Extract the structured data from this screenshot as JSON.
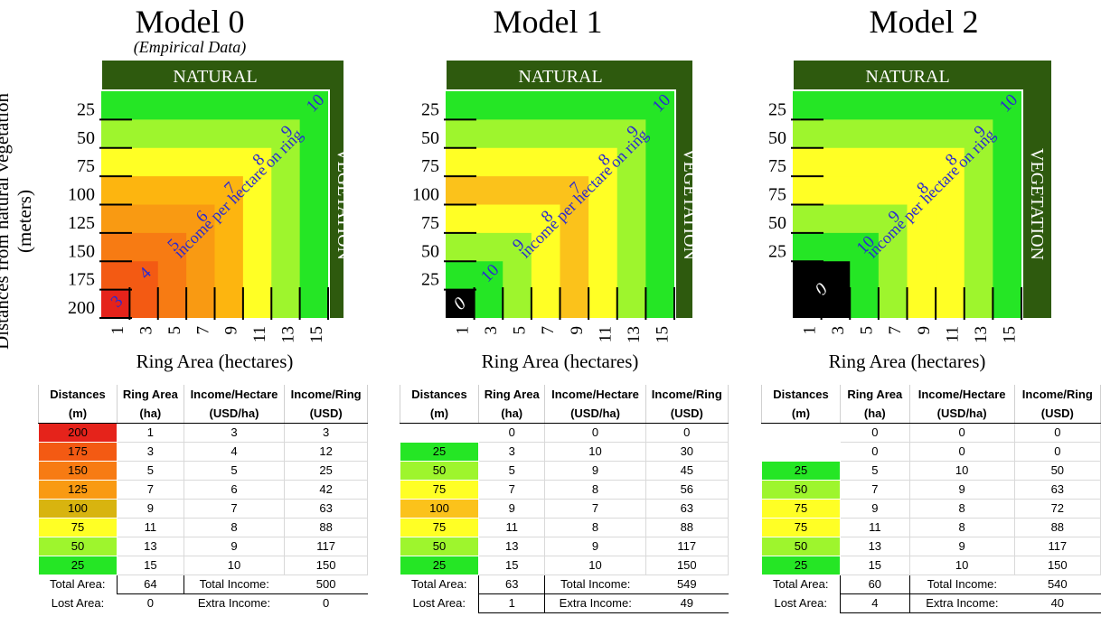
{
  "y_axis_label": "Distances from natural vegetation",
  "y_axis_units": "(meters)",
  "natural_label": "NATURAL",
  "vegetation_label": "VEGETATION",
  "x_axis_label": "Ring Area (hectares)",
  "x_ticks": [
    "1",
    "3",
    "5",
    "7",
    "9",
    "11",
    "13",
    "15"
  ],
  "diagonal_label": "income per hectare on ring",
  "colors": {
    "dark_green": "#2e5a0e",
    "ring_15": "#25e625",
    "ring_13": "#9ef52d",
    "ring_11": "#ffff25",
    "ring_9a": "#ffff00",
    "ring_9b": "#fbc21b",
    "ring_7": "#f99a12",
    "ring_5": "#f77b13",
    "ring_3": "#f35a13",
    "ring_1": "#e5231b",
    "lost": "#000000",
    "blue_text": "#2a2ad0"
  },
  "table_headers": [
    {
      "a": "Distances",
      "b": "(m)"
    },
    {
      "a": "Ring Area",
      "b": "(ha)"
    },
    {
      "a": "Income/Hectare",
      "b": "(USD/ha)"
    },
    {
      "a": "Income/Ring",
      "b": "(USD)"
    }
  ],
  "labels": {
    "total_area": "Total Area:",
    "lost_area": "Lost Area:",
    "total_income": "Total Income:",
    "extra_income": "Extra Income:"
  },
  "models": [
    {
      "title": "Model 0",
      "subtitle": "(Empirical Data)",
      "y_ticks": [
        "25",
        "50",
        "75",
        "100",
        "125",
        "150",
        "175",
        "200"
      ],
      "ring_incomes": [
        "3",
        "4",
        "5",
        "6",
        "7",
        "8",
        "9",
        "10"
      ],
      "lost_label": "",
      "rows": [
        {
          "dist": "200",
          "area": "1",
          "iph": "3",
          "ipr": "3",
          "color": "#e5231b"
        },
        {
          "dist": "175",
          "area": "3",
          "iph": "4",
          "ipr": "12",
          "color": "#f35a13"
        },
        {
          "dist": "150",
          "area": "5",
          "iph": "5",
          "ipr": "25",
          "color": "#f77b13"
        },
        {
          "dist": "125",
          "area": "7",
          "iph": "6",
          "ipr": "42",
          "color": "#f99a12"
        },
        {
          "dist": "100",
          "area": "9",
          "iph": "7",
          "ipr": "63",
          "color": "#d8b40f"
        },
        {
          "dist": "75",
          "area": "11",
          "iph": "8",
          "ipr": "88",
          "color": "#ffff25"
        },
        {
          "dist": "50",
          "area": "13",
          "iph": "9",
          "ipr": "117",
          "color": "#9ef52d"
        },
        {
          "dist": "25",
          "area": "15",
          "iph": "10",
          "ipr": "150",
          "color": "#25e625"
        }
      ],
      "total_area": "64",
      "lost_area": "0",
      "total_income": "500",
      "extra_income": "0"
    },
    {
      "title": "Model 1",
      "subtitle": "",
      "y_ticks": [
        "25",
        "50",
        "75",
        "100",
        "75",
        "50",
        "25"
      ],
      "ring_incomes": [
        "0",
        "10",
        "9",
        "8",
        "7",
        "8",
        "9",
        "10"
      ],
      "lost_label": "0",
      "rows": [
        {
          "dist": "",
          "area": "0",
          "iph": "0",
          "ipr": "0",
          "color": "#ffffff"
        },
        {
          "dist": "25",
          "area": "3",
          "iph": "10",
          "ipr": "30",
          "color": "#25e625"
        },
        {
          "dist": "50",
          "area": "5",
          "iph": "9",
          "ipr": "45",
          "color": "#9ef52d"
        },
        {
          "dist": "75",
          "area": "7",
          "iph": "8",
          "ipr": "56",
          "color": "#ffff25"
        },
        {
          "dist": "100",
          "area": "9",
          "iph": "7",
          "ipr": "63",
          "color": "#fbc21b"
        },
        {
          "dist": "75",
          "area": "11",
          "iph": "8",
          "ipr": "88",
          "color": "#ffff25"
        },
        {
          "dist": "50",
          "area": "13",
          "iph": "9",
          "ipr": "117",
          "color": "#9ef52d"
        },
        {
          "dist": "25",
          "area": "15",
          "iph": "10",
          "ipr": "150",
          "color": "#25e625"
        }
      ],
      "total_area": "63",
      "lost_area": "1",
      "total_income": "549",
      "extra_income": "49"
    },
    {
      "title": "Model 2",
      "subtitle": "",
      "y_ticks": [
        "25",
        "50",
        "75",
        "75",
        "50",
        "25"
      ],
      "ring_incomes": [
        "0",
        "0",
        "10",
        "9",
        "8",
        "8",
        "9",
        "10"
      ],
      "lost_label": "0",
      "rows": [
        {
          "dist": "",
          "area": "0",
          "iph": "0",
          "ipr": "0",
          "color": "#ffffff"
        },
        {
          "dist": "",
          "area": "0",
          "iph": "0",
          "ipr": "0",
          "color": "#ffffff"
        },
        {
          "dist": "25",
          "area": "5",
          "iph": "10",
          "ipr": "50",
          "color": "#25e625"
        },
        {
          "dist": "50",
          "area": "7",
          "iph": "9",
          "ipr": "63",
          "color": "#9ef52d"
        },
        {
          "dist": "75",
          "area": "9",
          "iph": "8",
          "ipr": "72",
          "color": "#ffff25"
        },
        {
          "dist": "75",
          "area": "11",
          "iph": "8",
          "ipr": "88",
          "color": "#ffff25"
        },
        {
          "dist": "50",
          "area": "13",
          "iph": "9",
          "ipr": "117",
          "color": "#9ef52d"
        },
        {
          "dist": "25",
          "area": "15",
          "iph": "10",
          "ipr": "150",
          "color": "#25e625"
        }
      ],
      "total_area": "60",
      "lost_area": "4",
      "total_income": "540",
      "extra_income": "40"
    }
  ]
}
